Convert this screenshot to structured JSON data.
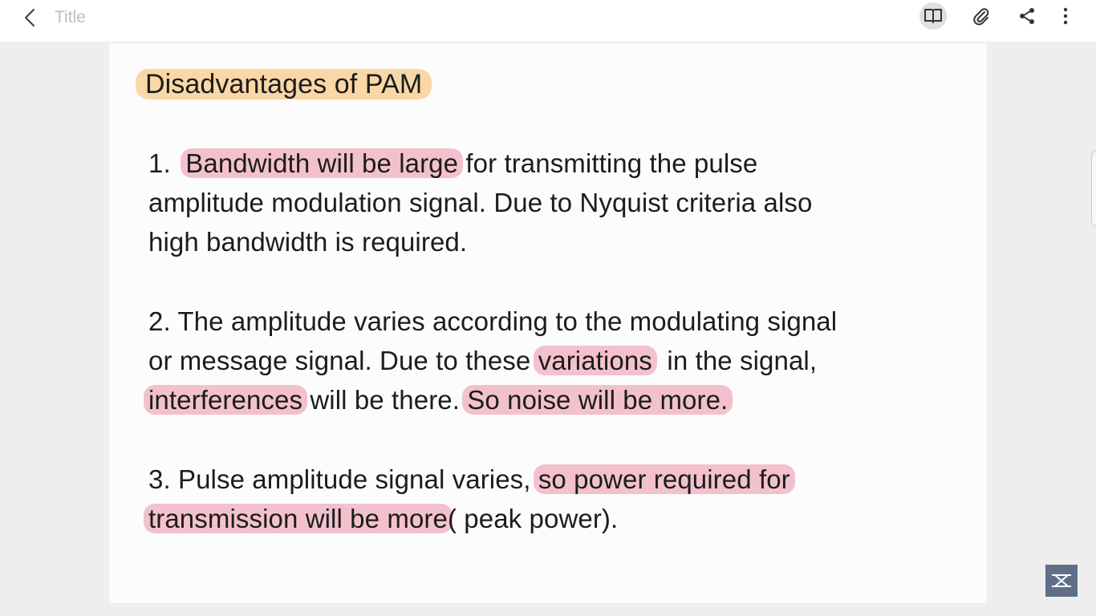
{
  "header": {
    "title": "Title",
    "icons": [
      "back-arrow-icon",
      "book-icon",
      "paperclip-icon",
      "share-icon",
      "more-vertical-icon"
    ]
  },
  "note": {
    "heading": "Disadvantages of  PAM",
    "p1": {
      "l1_num": "1.  ",
      "l1_hl": "Bandwidth will be large",
      "l1_rest": " for transmitting the pulse",
      "l2": "amplitude modulation signal. Due to Nyquist criteria also",
      "l3": "high bandwidth is required."
    },
    "p2": {
      "l1": "2. The amplitude varies according to the modulating signal",
      "l2_a": "or message signal. Due to these ",
      "l2_hl": "variations",
      "l2_b": "  in the signal,",
      "l3_hl1": "interferences",
      "l3_mid": " will be there. ",
      "l3_hl2": "So noise will be more."
    },
    "p3": {
      "l1_a": "3. Pulse amplitude signal varies, ",
      "l1_hl": "so power required for",
      "l2_hl": "transmission will be more",
      "l2_b": "( peak power)."
    }
  },
  "colors": {
    "highlight_pink": "#f3c1cd",
    "highlight_orange": "#fad7a6"
  }
}
